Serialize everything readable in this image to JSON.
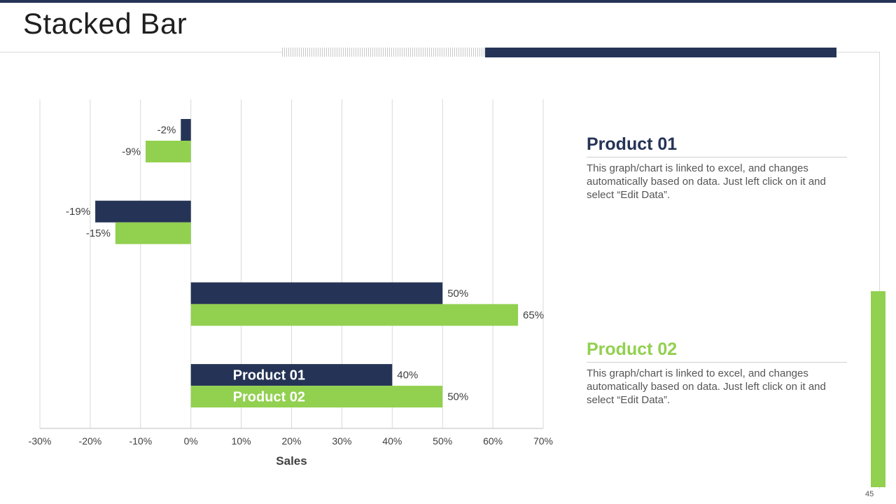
{
  "slide": {
    "title": "Stacked Bar",
    "page_number": "45"
  },
  "colors": {
    "navy": "#253456",
    "green": "#92d050",
    "grid": "#d9d9d9",
    "text": "#404040"
  },
  "legend": [
    {
      "title": "Product 01",
      "description": "This graph/chart is linked to excel, and changes automatically based on data. Just left click on it and select “Edit Data”."
    },
    {
      "title": "Product 02",
      "description": "This graph/chart is linked to excel, and changes automatically based on data. Just left click on it and select “Edit Data”."
    }
  ],
  "chart_data": {
    "type": "bar",
    "orientation": "horizontal",
    "title": "",
    "xlabel": "Sales",
    "ylabel": "",
    "xlim": [
      -30,
      70
    ],
    "x_ticks": [
      "-30%",
      "-20%",
      "-10%",
      "0%",
      "10%",
      "20%",
      "30%",
      "40%",
      "50%",
      "60%",
      "70%"
    ],
    "grid": true,
    "categories": [
      "",
      "",
      "",
      ""
    ],
    "series": [
      {
        "name": "Product 01",
        "color": "#253456",
        "values": [
          -2,
          -19,
          50,
          40
        ],
        "labels": [
          "-2%",
          "-19%",
          "50%",
          "40%"
        ]
      },
      {
        "name": "Product 02",
        "color": "#92d050",
        "values": [
          -9,
          -15,
          65,
          50
        ],
        "labels": [
          "-9%",
          "-15%",
          "65%",
          "50%"
        ]
      }
    ],
    "in_bar_series_names": [
      "Product 01",
      "Product 02"
    ]
  }
}
